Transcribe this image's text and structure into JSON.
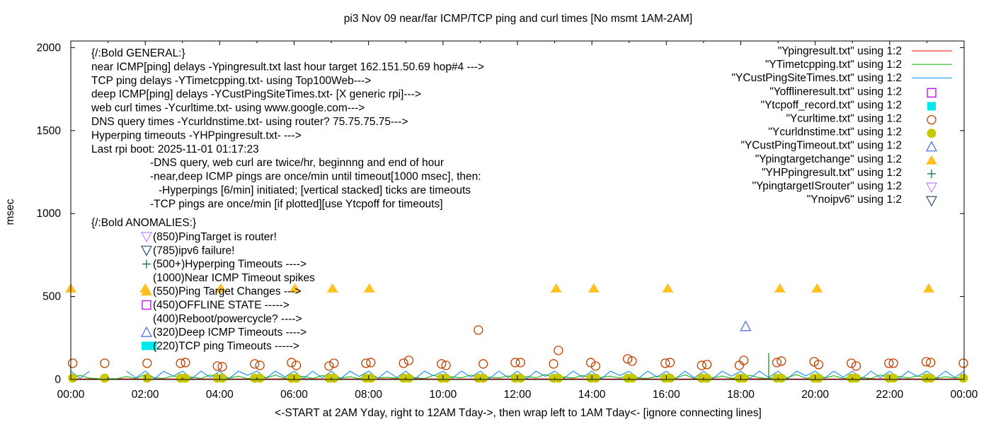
{
  "chart_data": {
    "type": "line",
    "title": "pi3 Nov 09  near/far ICMP/TCP ping and curl times [No msmt 1AM-2AM]",
    "xlabel": "<-START at 2AM Yday, right to 12AM Tday->, then wrap left to 1AM Tday<- [ignore connecting lines]",
    "ylabel": "msec",
    "xlim": [
      0,
      24
    ],
    "ylim": [
      0,
      2040
    ],
    "x_ticks": [
      "00:00",
      "02:00",
      "04:00",
      "06:00",
      "08:00",
      "10:00",
      "12:00",
      "14:00",
      "16:00",
      "18:00",
      "20:00",
      "22:00",
      "00:00"
    ],
    "y_ticks": [
      "0",
      "500",
      "1000",
      "1500",
      "2000"
    ],
    "y_tick_values": [
      0,
      500,
      1000,
      1500,
      2000
    ],
    "legend_position": "top-right",
    "legend": [
      {
        "label": "\"Ypingresult.txt\" using 1:2",
        "style": "line",
        "color": "#ff0000"
      },
      {
        "label": "\"YTimetcpping.txt\" using 1:2",
        "style": "line",
        "color": "#00b000"
      },
      {
        "label": "\"YCustPingSiteTimes.txt\" using 1:2",
        "style": "line",
        "color": "#0080ff"
      },
      {
        "label": "\"Yofflineresult.txt\" using 1:2",
        "style": "open-square",
        "color": "#c000ff"
      },
      {
        "label": "\"Ytcpoff_record.txt\" using 1:2",
        "style": "filled-square",
        "color": "#00e8e8"
      },
      {
        "label": "\"Ycurltime.txt\" using 1:2",
        "style": "open-circle",
        "color": "#c04000"
      },
      {
        "label": "\"Ycurldnstime.txt\" using 1:2",
        "style": "filled-circle",
        "color": "#c8c800"
      },
      {
        "label": "\"YCustPingTimeout.txt\" using 1:2",
        "style": "open-triangle-up",
        "color": "#4169e1"
      },
      {
        "label": "\"Ypingtargetchange\" using 1:2",
        "style": "filled-triangle-up",
        "color": "#ffc020"
      },
      {
        "label": "\"YHPpingresult.txt\" using 1:2",
        "style": "plus",
        "color": "#007030"
      },
      {
        "label": "\"YpingtargetISrouter\" using 1:2",
        "style": "open-triangle-down",
        "color": "#c080ff"
      },
      {
        "label": "\"Ynoipv6\" using 1:2",
        "style": "open-triangle-down",
        "color": "#305070"
      }
    ],
    "annotations": {
      "general": [
        {
          "text": "{/:Bold GENERAL:}",
          "indent": 0
        },
        {
          "text": "near ICMP[ping] delays -Ypingresult.txt last hour target 162.151.50.69 hop#4 --->",
          "indent": 0
        },
        {
          "text": "TCP ping delays -YTimetcpping.txt- using Top100Web--->",
          "indent": 0
        },
        {
          "text": "deep ICMP[ping] delays -YCustPingSiteTimes.txt- [X generic rpi]--->",
          "indent": 0
        },
        {
          "text": "web curl times -Ycurltime.txt- using www.google.com--->",
          "indent": 0
        },
        {
          "text": "DNS query times -Ycurldnstime.txt- using router? 75.75.75.75--->",
          "indent": 0
        },
        {
          "text": "Hyperping timeouts -YHPpingresult.txt- --->",
          "indent": 0
        },
        {
          "text": "Last rpi boot: 2025-11-01 01:17:23",
          "indent": 0
        },
        {
          "text": "-DNS query, web curl are twice/hr, beginnng and end of hour",
          "indent": 1
        },
        {
          "text": "-near,deep ICMP pings are once/min until timeout[1000 msec], then:",
          "indent": 1
        },
        {
          "text": "-Hyperpings [6/min] initiated; [vertical stacked] ticks are timeouts",
          "indent": 2
        },
        {
          "text": "-TCP pings are once/min [if plotted][use Ytcpoff for timeouts]",
          "indent": 1
        }
      ],
      "anomalies_header": "{/:Bold ANOMALIES:}",
      "anomalies": [
        {
          "text": "(850)PingTarget is router!",
          "marker": "open-triangle-down",
          "color": "#c080ff"
        },
        {
          "text": "(785)ipv6 failure!",
          "marker": "open-triangle-down",
          "color": "#305070"
        },
        {
          "text": "(500+)Hyperping Timeouts ---->",
          "marker": "plus",
          "color": "#007030"
        },
        {
          "text": "(1000)Near ICMP Timeout spikes",
          "marker": "none",
          "color": ""
        },
        {
          "text": "(550)Ping Target Changes --->",
          "marker": "filled-triangle-up",
          "color": "#ffc020"
        },
        {
          "text": "(450)OFFLINE STATE ----->",
          "marker": "open-square",
          "color": "#c000ff"
        },
        {
          "text": "(400)Reboot/powercycle? ---->",
          "marker": "none",
          "color": ""
        },
        {
          "text": "(320)Deep ICMP Timeouts ---->",
          "marker": "open-triangle-up",
          "color": "#4169e1"
        },
        {
          "text": "(220)TCP ping Timeouts ----->",
          "marker": "filled-rect",
          "color": "#00e8e8"
        }
      ]
    },
    "series": {
      "interval_hours": 0.25,
      "ping": {
        "name": "Ypingresult.txt",
        "values": [
          3,
          4,
          3,
          3,
          3,
          3,
          4,
          3,
          3,
          4,
          3,
          3,
          3,
          4,
          3,
          3,
          3,
          3,
          4,
          3,
          3,
          3,
          4,
          3,
          3
        ]
      },
      "ping_interval_hours": 1,
      "custping": {
        "name": "YCustPingSiteTimes.txt",
        "values": [
          50,
          8,
          50,
          null,
          null,
          null,
          50,
          10,
          50,
          5,
          50,
          20,
          50,
          6,
          50,
          12,
          50,
          4,
          50,
          25,
          50,
          8,
          50,
          15,
          50,
          6,
          50,
          10,
          50,
          5,
          50,
          18,
          50,
          7,
          50,
          12,
          50,
          4,
          50,
          22,
          50,
          9,
          50,
          14,
          50,
          6,
          50,
          11,
          50,
          5,
          50,
          19,
          50,
          8,
          50,
          13,
          50,
          4,
          50,
          24,
          50,
          7,
          50,
          15,
          50,
          6,
          50,
          10,
          50,
          5,
          50,
          20,
          50,
          8,
          50,
          12,
          50,
          4,
          50,
          22,
          50,
          9,
          50,
          14,
          50,
          6,
          50,
          11,
          50,
          5,
          50,
          18,
          50,
          9,
          50,
          12,
          50
        ]
      },
      "tcpping": {
        "name": "YTimetcpping.txt",
        "values": [
          12,
          25,
          8,
          5,
          5,
          5,
          18,
          6,
          30,
          10,
          7,
          22,
          9,
          15,
          6,
          28,
          11,
          8,
          20,
          5,
          14,
          9,
          26,
          7,
          12,
          19,
          6,
          24,
          10,
          8,
          17,
          5,
          29,
          9,
          13,
          7,
          21,
          11,
          6,
          25,
          8,
          16,
          10,
          27,
          7,
          14,
          9,
          22,
          6,
          18,
          11,
          30,
          7,
          15,
          9,
          24,
          6,
          13,
          20,
          8,
          26,
          10,
          7,
          19,
          12,
          8,
          28,
          6,
          15,
          9,
          21,
          7,
          13,
          25,
          10,
          6,
          18,
          11,
          29,
          8,
          14,
          9,
          23,
          7,
          16,
          12,
          6,
          27,
          10,
          19,
          8,
          22,
          11,
          7,
          17,
          9,
          13
        ]
      },
      "hpping": {
        "name": "YHPpingresult.txt",
        "points": [
          [
            18.75,
            160
          ]
        ]
      },
      "curltime": {
        "name": "Ycurltime.txt",
        "points": [
          [
            0.05,
            98
          ],
          [
            0.91,
            98
          ],
          [
            2.05,
            98
          ],
          [
            2.95,
            98
          ],
          [
            3.08,
            102
          ],
          [
            3.94,
            81
          ],
          [
            4.07,
            77
          ],
          [
            4.94,
            94
          ],
          [
            5.08,
            85
          ],
          [
            5.93,
            102
          ],
          [
            6.06,
            85
          ],
          [
            6.94,
            81
          ],
          [
            7.07,
            98
          ],
          [
            7.93,
            98
          ],
          [
            8.06,
            102
          ],
          [
            8.94,
            98
          ],
          [
            9.08,
            115
          ],
          [
            9.96,
            94
          ],
          [
            10.08,
            85
          ],
          [
            10.95,
            298
          ],
          [
            11.08,
            94
          ],
          [
            11.94,
            102
          ],
          [
            12.08,
            102
          ],
          [
            12.97,
            94
          ],
          [
            13.1,
            175
          ],
          [
            13.97,
            102
          ],
          [
            14.1,
            81
          ],
          [
            14.96,
            124
          ],
          [
            15.08,
            111
          ],
          [
            15.97,
            98
          ],
          [
            16.1,
            102
          ],
          [
            16.95,
            85
          ],
          [
            17.09,
            90
          ],
          [
            17.96,
            85
          ],
          [
            18.08,
            115
          ],
          [
            18.97,
            102
          ],
          [
            19.09,
            111
          ],
          [
            19.97,
            107
          ],
          [
            20.09,
            90
          ],
          [
            20.97,
            98
          ],
          [
            21.1,
            81
          ],
          [
            21.98,
            98
          ],
          [
            22.1,
            98
          ],
          [
            22.98,
            107
          ],
          [
            23.1,
            102
          ],
          [
            23.98,
            98
          ]
        ]
      },
      "curldnstime": {
        "name": "Ycurldnstime.txt",
        "points": [
          [
            0.05,
            8
          ],
          [
            0.91,
            8
          ],
          [
            2.05,
            8
          ],
          [
            2.95,
            8
          ],
          [
            3.08,
            8
          ],
          [
            3.94,
            8
          ],
          [
            4.07,
            8
          ],
          [
            4.94,
            8
          ],
          [
            5.08,
            8
          ],
          [
            5.93,
            8
          ],
          [
            6.06,
            8
          ],
          [
            6.94,
            8
          ],
          [
            7.07,
            8
          ],
          [
            7.93,
            8
          ],
          [
            8.06,
            8
          ],
          [
            8.94,
            8
          ],
          [
            9.08,
            8
          ],
          [
            9.96,
            8
          ],
          [
            10.08,
            8
          ],
          [
            10.95,
            8
          ],
          [
            11.08,
            8
          ],
          [
            11.94,
            8
          ],
          [
            12.08,
            8
          ],
          [
            12.97,
            8
          ],
          [
            13.1,
            8
          ],
          [
            13.97,
            8
          ],
          [
            14.1,
            8
          ],
          [
            14.96,
            8
          ],
          [
            15.08,
            8
          ],
          [
            15.97,
            8
          ],
          [
            16.1,
            8
          ],
          [
            16.95,
            8
          ],
          [
            17.09,
            8
          ],
          [
            17.96,
            8
          ],
          [
            18.08,
            8
          ],
          [
            18.97,
            8
          ],
          [
            19.09,
            8
          ],
          [
            19.97,
            8
          ],
          [
            20.09,
            8
          ],
          [
            20.97,
            8
          ],
          [
            21.1,
            8
          ],
          [
            21.98,
            8
          ],
          [
            22.1,
            8
          ],
          [
            22.98,
            8
          ],
          [
            23.1,
            8
          ],
          [
            23.98,
            8
          ]
        ]
      },
      "custpingtimeout": {
        "name": "YCustPingTimeout.txt",
        "points": [
          [
            18.13,
            320
          ]
        ]
      },
      "pingtargetchange": {
        "name": "Ypingtargetchange",
        "points": [
          [
            0,
            550
          ],
          [
            2,
            550
          ],
          [
            4.03,
            550
          ],
          [
            6.02,
            550
          ],
          [
            7.03,
            550
          ],
          [
            8.02,
            550
          ],
          [
            13.04,
            550
          ],
          [
            14.05,
            550
          ],
          [
            16.04,
            550
          ],
          [
            19.05,
            550
          ],
          [
            20.05,
            550
          ],
          [
            23.05,
            550
          ]
        ]
      }
    }
  }
}
